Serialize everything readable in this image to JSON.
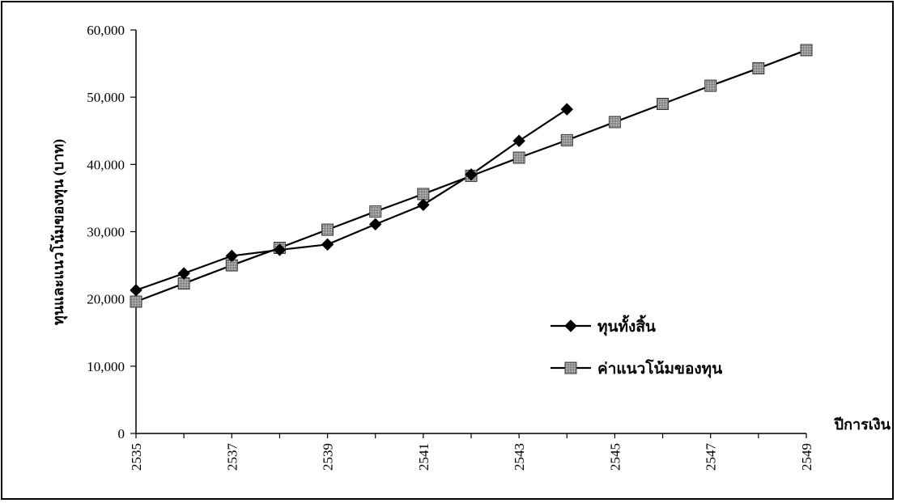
{
  "chart_data": {
    "type": "line",
    "xlabel": "ปีการเงิน",
    "ylabel": "ทุนและแนวโน้มของทุน (บาท)",
    "x_ticks": [
      "2535",
      "2537",
      "2539",
      "2541",
      "2543",
      "2545",
      "2547",
      "2549"
    ],
    "y_ticks": [
      "0",
      "10,000",
      "20,000",
      "30,000",
      "40,000",
      "50,000",
      "60,000"
    ],
    "xlim": [
      2535,
      2549
    ],
    "ylim": [
      0,
      60000
    ],
    "grid": false,
    "legend_position": "right",
    "series": [
      {
        "name": "ทุนทั้งสิ้น",
        "marker": "diamond",
        "color": "#000000",
        "x": [
          2535,
          2536,
          2537,
          2538,
          2539,
          2540,
          2541,
          2542,
          2543,
          2544
        ],
        "values": [
          21300,
          23800,
          26400,
          27300,
          28100,
          31100,
          34000,
          38500,
          43500,
          48200
        ]
      },
      {
        "name": "ค่าแนวโน้มของทุน",
        "marker": "square",
        "color": "#000000",
        "marker_fill": "#8c8c8c",
        "x": [
          2535,
          2536,
          2537,
          2538,
          2539,
          2540,
          2541,
          2542,
          2543,
          2544,
          2545,
          2546,
          2547,
          2548,
          2549
        ],
        "values": [
          19600,
          22300,
          25000,
          27600,
          30300,
          33000,
          35600,
          38300,
          41000,
          43600,
          46300,
          49000,
          51700,
          54300,
          57000
        ]
      }
    ]
  }
}
